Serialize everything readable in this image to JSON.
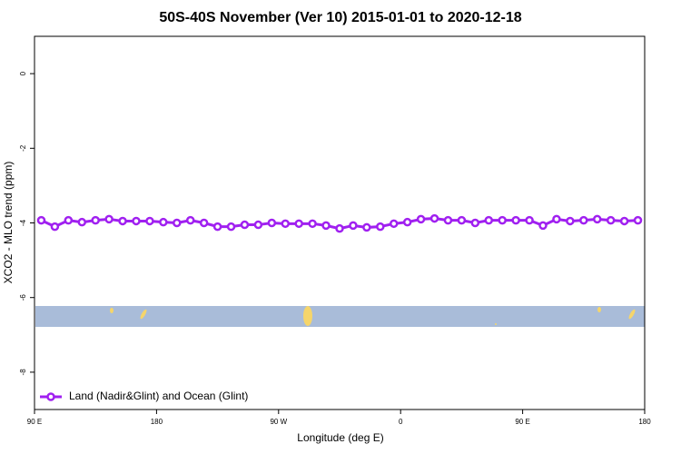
{
  "chart_data": {
    "type": "line",
    "title": "50S-40S November (Ver 10)   2015-01-01 to 2020-12-18",
    "x_label": "Longitude (deg E)",
    "y_label": "XCO2 - MLO trend (ppm)",
    "x": [
      95,
      105,
      115,
      125,
      135,
      145,
      155,
      165,
      175,
      185,
      195,
      205,
      215,
      225,
      235,
      245,
      255,
      265,
      275,
      285,
      295,
      305,
      315,
      325,
      335,
      345,
      355,
      365,
      375,
      385,
      395,
      405,
      415,
      425,
      435,
      445,
      455,
      465,
      475,
      485,
      495,
      505,
      515,
      525,
      535
    ],
    "series": [
      {
        "name": "Land (Nadir&Glint) and Ocean (Glint)",
        "color": "#a020f0",
        "values": [
          -3.93,
          -4.1,
          -3.93,
          -3.98,
          -3.93,
          -3.9,
          -3.95,
          -3.95,
          -3.95,
          -3.98,
          -4.0,
          -3.93,
          -4.0,
          -4.1,
          -4.1,
          -4.05,
          -4.05,
          -4.0,
          -4.02,
          -4.02,
          -4.02,
          -4.07,
          -4.15,
          -4.07,
          -4.12,
          -4.1,
          -4.02,
          -3.98,
          -3.9,
          -3.88,
          -3.93,
          -3.93,
          -4.0,
          -3.93,
          -3.93,
          -3.93,
          -3.93,
          -4.07,
          -3.9,
          -3.95,
          -3.93,
          -3.9,
          -3.93,
          -3.95,
          -3.93
        ]
      }
    ],
    "xlim": [
      90,
      540
    ],
    "xticks": [
      {
        "value": 90,
        "label": "90 E"
      },
      {
        "value": 180,
        "label": "180"
      },
      {
        "value": 270,
        "label": "90 W"
      },
      {
        "value": 360,
        "label": "0"
      },
      {
        "value": 450,
        "label": "90 E"
      },
      {
        "value": 540,
        "label": "180"
      }
    ],
    "ylim": [
      -9,
      1
    ],
    "yticks": [
      0,
      -2,
      -4,
      -6,
      -8
    ],
    "legend": "bottom-left"
  }
}
